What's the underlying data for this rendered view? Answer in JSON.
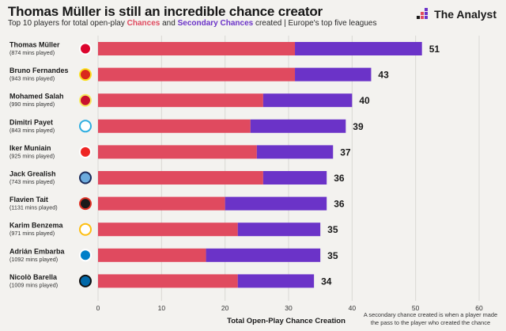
{
  "header": {
    "title": "Thomas Müller is still an incredible chance creator",
    "subtitle_prefix": "Top 10 players for total open-play ",
    "subtitle_chances": "Chances",
    "subtitle_and": " and ",
    "subtitle_secondary": "Secondary Chances",
    "subtitle_suffix": " created | Europe's top five leagues"
  },
  "brand": {
    "name": "The Analyst",
    "icon": "analyst-logo-icon"
  },
  "footnote": "A secondary chance created is when a player made the pass to the player who created the chance",
  "colors": {
    "chances": "#e04a5f",
    "secondary": "#6b33c8",
    "background": "#f3f2ef",
    "grid": "#d9d8d4"
  },
  "chart_data": {
    "type": "bar",
    "orientation": "horizontal",
    "stacked": true,
    "xlabel": "Total Open-Play Chance Creation",
    "xlim": [
      0,
      60
    ],
    "xticks": [
      0,
      10,
      20,
      30,
      40,
      50,
      60
    ],
    "grid": true,
    "categories": [
      "Thomas Müller",
      "Bruno Fernandes",
      "Mohamed Salah",
      "Dimitri Payet",
      "Iker Muniain",
      "Jack Grealish",
      "Flavien Tait",
      "Karim Benzema",
      "Adrián Embarba",
      "Nicolò Barella"
    ],
    "minutes": [
      "(874 mins played)",
      "(943 mins played)",
      "(990 mins played)",
      "(843 mins played)",
      "(925 mins played)",
      "(743 mins played)",
      "(1131 mins played)",
      "(971 mins played)",
      "(1092 mins played)",
      "(1009 mins played)"
    ],
    "club_badges": [
      "bayern-munich-badge-icon",
      "manchester-united-badge-icon",
      "liverpool-badge-icon",
      "marseille-badge-icon",
      "athletic-bilbao-badge-icon",
      "manchester-city-badge-icon",
      "rennes-badge-icon",
      "real-madrid-badge-icon",
      "espanyol-badge-icon",
      "inter-milan-badge-icon"
    ],
    "series": [
      {
        "name": "Chances",
        "values": [
          31,
          31,
          26,
          24,
          25,
          26,
          20,
          22,
          17,
          22
        ]
      },
      {
        "name": "Secondary Chances",
        "values": [
          20,
          12,
          14,
          15,
          12,
          10,
          16,
          13,
          18,
          12
        ]
      }
    ],
    "totals": [
      51,
      43,
      40,
      39,
      37,
      36,
      36,
      35,
      35,
      34
    ]
  }
}
